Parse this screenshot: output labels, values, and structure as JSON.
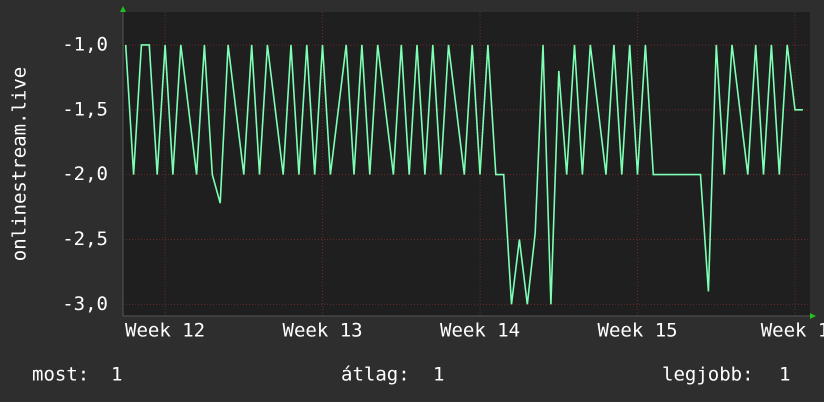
{
  "chart_data": {
    "type": "line",
    "ylabel": "onlinestream.live",
    "x": [
      11.75,
      11.8,
      11.85,
      11.9,
      11.95,
      12.0,
      12.05,
      12.1,
      12.15,
      12.2,
      12.25,
      12.3,
      12.35,
      12.4,
      12.45,
      12.5,
      12.55,
      12.6,
      12.65,
      12.7,
      12.75,
      12.8,
      12.85,
      12.9,
      12.95,
      13.0,
      13.05,
      13.1,
      13.15,
      13.2,
      13.25,
      13.3,
      13.35,
      13.4,
      13.45,
      13.5,
      13.55,
      13.6,
      13.65,
      13.7,
      13.75,
      13.8,
      13.85,
      13.9,
      13.95,
      14.0,
      14.05,
      14.1,
      14.15,
      14.2,
      14.25,
      14.3,
      14.35,
      14.4,
      14.45,
      14.5,
      14.55,
      14.6,
      14.65,
      14.7,
      14.75,
      14.8,
      14.85,
      14.9,
      14.95,
      15.0,
      15.05,
      15.1,
      15.15,
      15.2,
      15.25,
      15.3,
      15.35,
      15.4,
      15.45,
      15.5,
      15.55,
      15.6,
      15.65,
      15.7,
      15.75,
      15.8,
      15.85,
      15.9,
      15.95,
      16.0,
      16.05
    ],
    "series": [
      {
        "color": "#7dffb4",
        "values": [
          -1,
          -2,
          -1,
          -1,
          -2,
          -1,
          -2,
          -1,
          -1.5,
          -2,
          -1,
          -2,
          -2.22,
          -1,
          -1.5,
          -2,
          -1,
          -2,
          -1,
          -1.5,
          -2,
          -1,
          -2,
          -1,
          -2,
          -1,
          -2,
          -1.5,
          -1,
          -2,
          -1,
          -2,
          -1,
          -1.5,
          -2,
          -1,
          -2,
          -1,
          -2,
          -1,
          -2,
          -1,
          -1.5,
          -2,
          -1,
          -2,
          -1,
          -2,
          -2,
          -3.0,
          -2.5,
          -3.0,
          -2.45,
          -1,
          -3.0,
          -1.2,
          -2,
          -1,
          -2,
          -1,
          -1.5,
          -2,
          -1,
          -2,
          -1,
          -2,
          -1,
          -2,
          -2,
          -2,
          -2,
          -2,
          -2,
          -2,
          -2.9,
          -1,
          -2,
          -1,
          -1.5,
          -2,
          -1,
          -2,
          -1,
          -2,
          -1,
          -1.5,
          -1.5
        ]
      }
    ],
    "xlim": [
      11.733,
      16.095
    ],
    "ylim": [
      -3.09,
      -0.746
    ],
    "xticks": [
      {
        "value": 12,
        "label": "Week 12"
      },
      {
        "value": 13,
        "label": "Week 13"
      },
      {
        "value": 14,
        "label": "Week 14"
      },
      {
        "value": 15,
        "label": "Week 15"
      },
      {
        "value": 16,
        "label": "Week 1"
      }
    ],
    "yticks": [
      {
        "value": -1.0,
        "label": "-1,0"
      },
      {
        "value": -1.5,
        "label": "-1,5"
      },
      {
        "value": -2.0,
        "label": "-2,0"
      },
      {
        "value": -2.5,
        "label": "-2,5"
      },
      {
        "value": -3.0,
        "label": "-3,0"
      }
    ],
    "grid": true,
    "legend": [
      {
        "label": "most:",
        "value": 1
      },
      {
        "label": "átlag:",
        "value": 1
      },
      {
        "label": "legjobb:",
        "value": 1
      }
    ]
  }
}
